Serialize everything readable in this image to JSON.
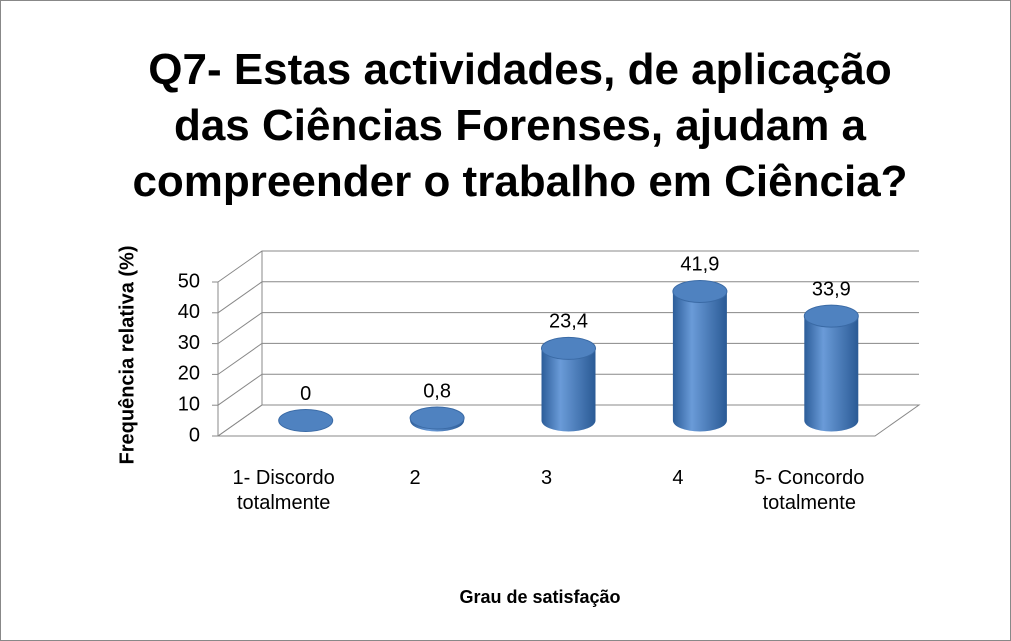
{
  "chart_data": {
    "type": "bar",
    "title": "Q7- Estas actividades, de aplicação das Ciências Forenses, ajudam a compreender o trabalho em Ciência?",
    "categories": [
      "1- Discordo totalmente",
      "2",
      "3",
      "4",
      "5- Concordo totalmente"
    ],
    "values": [
      0,
      0.8,
      23.4,
      41.9,
      33.9
    ],
    "value_labels": [
      "0",
      "0,8",
      "23,4",
      "41,9",
      "33,9"
    ],
    "color": "#4a7ebb",
    "ylim": [
      0,
      50
    ],
    "yticks": [
      0,
      10,
      20,
      30,
      40,
      50
    ],
    "grid": true,
    "xlabel": "Grau de satisfação",
    "ylabel": "Frequência relativa (%)"
  }
}
